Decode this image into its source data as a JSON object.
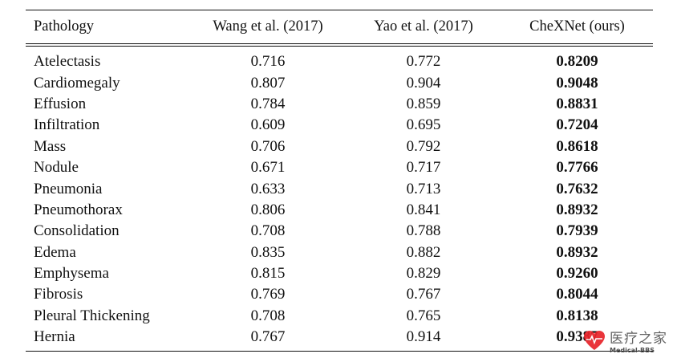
{
  "table": {
    "headers": [
      "Pathology",
      "Wang et al. (2017)",
      "Yao et al. (2017)",
      "CheXNet (ours)"
    ],
    "rows": [
      {
        "pathology": "Atelectasis",
        "wang": "0.716",
        "yao": "0.772",
        "chexnet": "0.8209"
      },
      {
        "pathology": "Cardiomegaly",
        "wang": "0.807",
        "yao": "0.904",
        "chexnet": "0.9048"
      },
      {
        "pathology": "Effusion",
        "wang": "0.784",
        "yao": "0.859",
        "chexnet": "0.8831"
      },
      {
        "pathology": "Infiltration",
        "wang": "0.609",
        "yao": "0.695",
        "chexnet": "0.7204"
      },
      {
        "pathology": "Mass",
        "wang": "0.706",
        "yao": "0.792",
        "chexnet": "0.8618"
      },
      {
        "pathology": "Nodule",
        "wang": "0.671",
        "yao": "0.717",
        "chexnet": "0.7766"
      },
      {
        "pathology": "Pneumonia",
        "wang": "0.633",
        "yao": "0.713",
        "chexnet": "0.7632"
      },
      {
        "pathology": "Pneumothorax",
        "wang": "0.806",
        "yao": "0.841",
        "chexnet": "0.8932"
      },
      {
        "pathology": "Consolidation",
        "wang": "0.708",
        "yao": "0.788",
        "chexnet": "0.7939"
      },
      {
        "pathology": "Edema",
        "wang": "0.835",
        "yao": "0.882",
        "chexnet": "0.8932"
      },
      {
        "pathology": "Emphysema",
        "wang": "0.815",
        "yao": "0.829",
        "chexnet": "0.9260"
      },
      {
        "pathology": "Fibrosis",
        "wang": "0.769",
        "yao": "0.767",
        "chexnet": "0.8044"
      },
      {
        "pathology": "Pleural Thickening",
        "wang": "0.708",
        "yao": "0.765",
        "chexnet": "0.8138"
      },
      {
        "pathology": "Hernia",
        "wang": "0.767",
        "yao": "0.914",
        "chexnet": "0.9387"
      }
    ]
  },
  "watermark": {
    "text_cn": "医疗之家",
    "text_en": "Medical-BBS",
    "icon": "heart-icon",
    "color": "#e8232a"
  }
}
